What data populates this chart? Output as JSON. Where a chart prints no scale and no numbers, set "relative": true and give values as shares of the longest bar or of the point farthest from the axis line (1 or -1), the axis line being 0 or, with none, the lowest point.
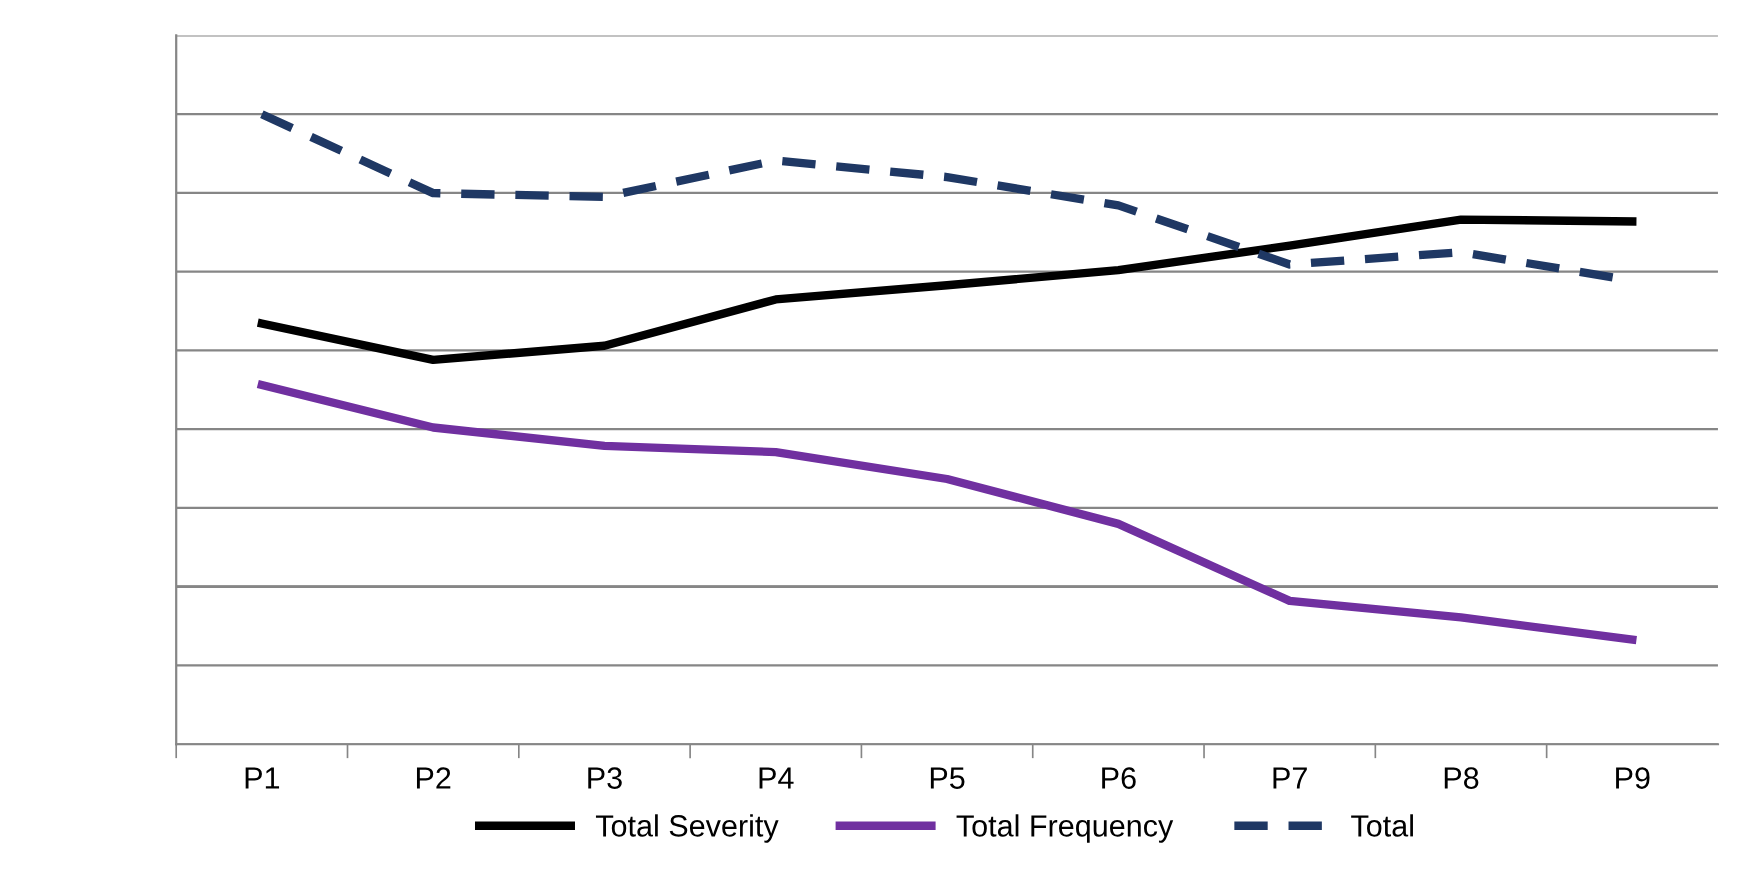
{
  "chart_data": {
    "type": "line",
    "relative": true,
    "categories": [
      "P1",
      "P2",
      "P3",
      "P4",
      "P5",
      "P6",
      "P7",
      "P8",
      "P9"
    ],
    "series": [
      {
        "name": "Total Severity",
        "color": "#000000",
        "line_style": "solid",
        "values": [
          0.557,
          0.48,
          0.51,
          0.608,
          0.638,
          0.67,
          0.722,
          0.777,
          0.773
        ]
      },
      {
        "name": "Total Frequency",
        "color": "#7030a0",
        "line_style": "solid",
        "values": [
          0.427,
          0.337,
          0.298,
          0.285,
          0.228,
          0.133,
          -0.03,
          -0.065,
          -0.112
        ]
      },
      {
        "name": "Total",
        "color": "#1f3864",
        "line_style": "dashed",
        "values": [
          1,
          0.833,
          0.825,
          0.902,
          0.867,
          0.807,
          0.682,
          0.708,
          0.648
        ]
      }
    ],
    "grid": "y",
    "legend": "bottom",
    "marker": "none"
  }
}
